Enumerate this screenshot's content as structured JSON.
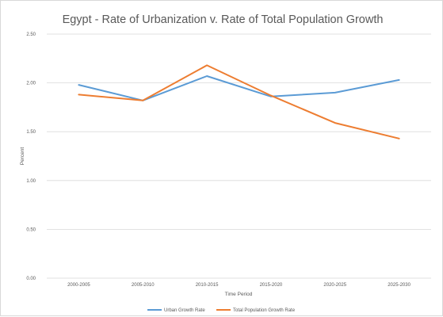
{
  "chart_data": {
    "type": "line",
    "title": "Egypt - Rate of Urbanization v. Rate of Total Population Growth",
    "xlabel": "Time Period",
    "ylabel": "Percent",
    "categories": [
      "2000-2005",
      "2005-2010",
      "2010-2015",
      "2015-2020",
      "2020-2025",
      "2025-2030"
    ],
    "ylim": [
      0,
      2.5
    ],
    "yticks": [
      "0.00",
      "0.50",
      "1.00",
      "1.50",
      "2.00",
      "2.50"
    ],
    "grid": true,
    "legend_position": "bottom",
    "series": [
      {
        "name": "Urban Growth Rate",
        "color": "#5b9bd5",
        "values": [
          1.98,
          1.82,
          2.07,
          1.86,
          1.9,
          2.03
        ]
      },
      {
        "name": "Total Population Growth Rate",
        "color": "#ed7d31",
        "values": [
          1.88,
          1.82,
          2.18,
          1.87,
          1.59,
          1.43
        ]
      }
    ]
  }
}
